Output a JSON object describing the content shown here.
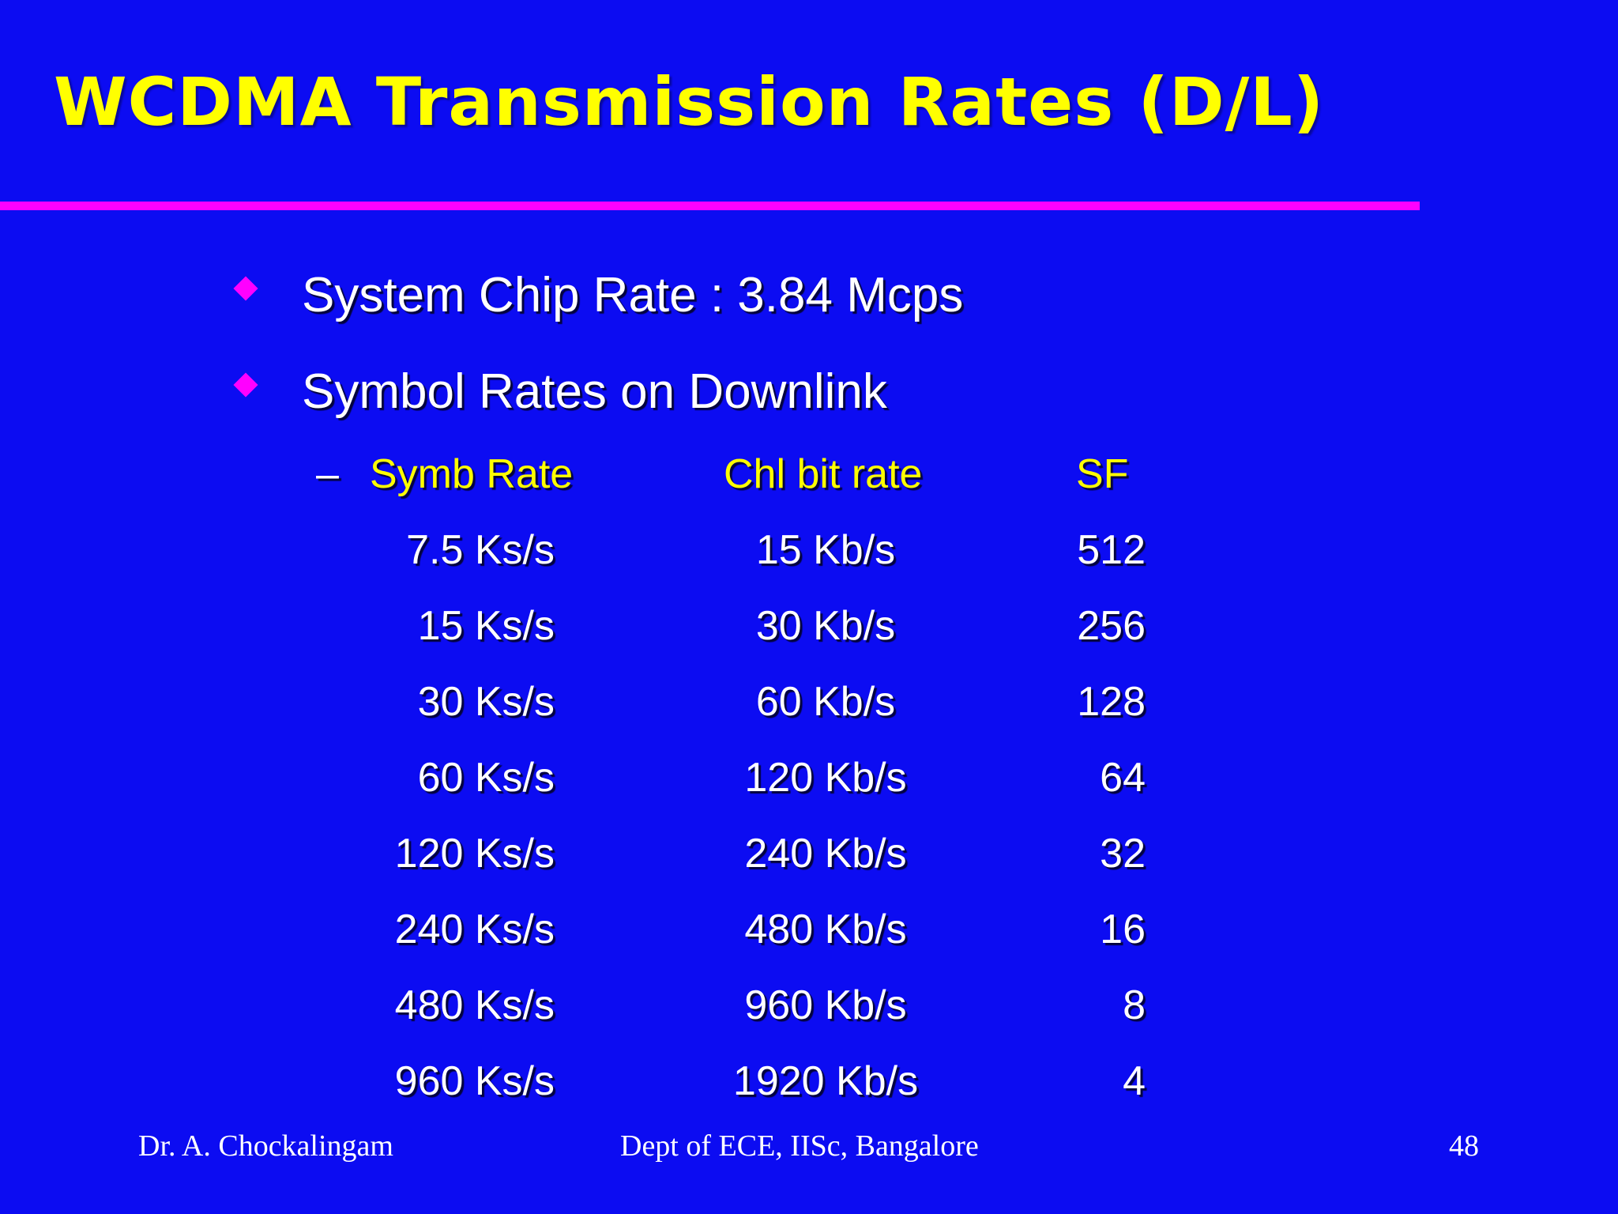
{
  "slide": {
    "title": "WCDMA Transmission Rates (D/L)",
    "bullets": [
      "System Chip Rate : 3.84 Mcps",
      "Symbol Rates on Downlink"
    ],
    "sub_dash": "–",
    "table": {
      "headers": [
        "Symb Rate",
        "Chl bit rate",
        "SF"
      ],
      "rows": [
        [
          "7.5 Ks/s",
          "15 Kb/s",
          "512"
        ],
        [
          "15 Ks/s",
          "30 Kb/s",
          "256"
        ],
        [
          "30 Ks/s",
          "60 Kb/s",
          "128"
        ],
        [
          "60 Ks/s",
          "120 Kb/s",
          "64"
        ],
        [
          "120 Ks/s",
          "240 Kb/s",
          "32"
        ],
        [
          "240 Ks/s",
          "480 Kb/s",
          "16"
        ],
        [
          "480 Ks/s",
          "960 Kb/s",
          "8"
        ],
        [
          "960 Ks/s",
          "1920 Kb/s",
          "4"
        ]
      ]
    },
    "footer": {
      "author": "Dr. A. Chockalingam",
      "dept": "Dept of ECE, IISc, Bangalore",
      "page": "48"
    },
    "colors": {
      "background": "#0c0cf2",
      "title": "#ffff00",
      "accent": "#ff00ff",
      "text": "#ffffff"
    }
  }
}
